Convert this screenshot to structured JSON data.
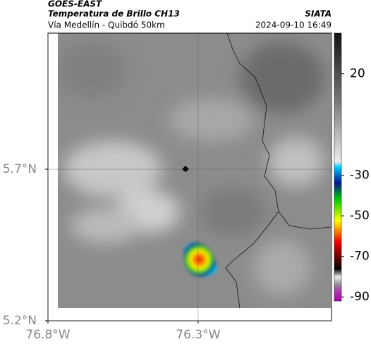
{
  "header": {
    "satellite": "GOES-EAST",
    "product": "Temperatura de Brillo CH13",
    "source": "SIATA",
    "route": "Vía Medellín - Quibdó 50km",
    "timestamp": "2024-09-10 16:49"
  },
  "map": {
    "xlim": [
      -76.8,
      -75.856
    ],
    "ylim": [
      5.2,
      6.149
    ],
    "xticks": [
      {
        "value": -76.8,
        "label": "76.8°W"
      },
      {
        "value": -76.3,
        "label": "76.3°W"
      }
    ],
    "yticks": [
      {
        "value": 5.2,
        "label": "5.2°N"
      },
      {
        "value": 5.7,
        "label": "5.7°N"
      }
    ]
  },
  "colorbar": {
    "lim": [
      -92,
      40
    ],
    "ticks": [
      20,
      -30,
      -50,
      -70,
      -90
    ]
  }
}
